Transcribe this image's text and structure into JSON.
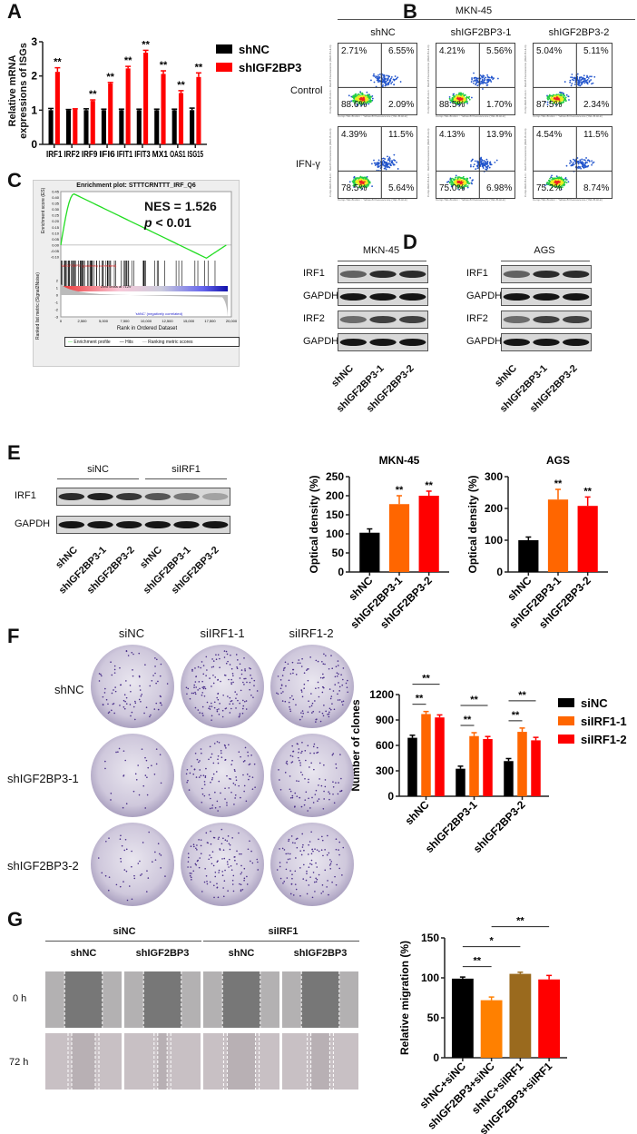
{
  "panels": {
    "A": "A",
    "B": "B",
    "C": "C",
    "D": "D",
    "E": "E",
    "F": "F",
    "G": "G"
  },
  "panelB": {
    "cell_line": "MKN-45",
    "columns": [
      "shNC",
      "shIGF2BP3-1",
      "shIGF2BP3-2"
    ],
    "rows": [
      "Control",
      "IFN-γ"
    ],
    "x_axis_label": "Comp-YEL-B-HLin :: Yellow-B Fluorescence (YEL-B-HLin)",
    "y_axis_label": "Comp-RED-B-HLin :: Red-B Fluorescence (RED-B-HLin)",
    "quadrants": [
      [
        [
          "2.71%",
          "6.55%",
          "88.6%",
          "2.09%"
        ],
        [
          "4.21%",
          "5.56%",
          "88.5%",
          "1.70%"
        ],
        [
          "5.04%",
          "5.11%",
          "87.5%",
          "2.34%"
        ]
      ],
      [
        [
          "4.39%",
          "11.5%",
          "78.5%",
          "5.64%"
        ],
        [
          "4.13%",
          "13.9%",
          "75.0%",
          "6.98%"
        ],
        [
          "4.54%",
          "11.5%",
          "75.2%",
          "8.74%"
        ]
      ]
    ]
  },
  "panelC": {
    "title": "Enrichment plot: STTTCRNTTT_IRF_Q6",
    "nes": "NES = 1.526",
    "p_prefix": "p",
    "p_value": " < 0.01",
    "es_label": "Enrichment score (ES)",
    "es_ticks": [
      "0.45",
      "0.40",
      "0.35",
      "0.30",
      "0.25",
      "0.20",
      "0.15",
      "0.10",
      "0.05",
      "0.00",
      "-0.05",
      "-0.10"
    ],
    "metric_label": "Ranked list metric (Signal2Noise)",
    "metric_ticks": [
      "2",
      "1",
      "0",
      "-1",
      "-2",
      "-3"
    ],
    "pos_label": "'shIGF2BP3' (positively correlated)",
    "neg_label": "'shNC' (negatively correlated)",
    "zero_cross": "Zero cross at 7129",
    "x_ticks": [
      "0",
      "2,500",
      "5,000",
      "7,500",
      "10,000",
      "12,500",
      "15,000",
      "17,500",
      "20,000"
    ],
    "x_label": "Rank in Ordered Dataset",
    "legend": [
      "Enrichment profile",
      "Hits",
      "Ranking metric scores"
    ],
    "colors": {
      "profile": "#22dd22"
    }
  },
  "panelD": {
    "groups": [
      "MKN-45",
      "AGS"
    ],
    "bands": [
      "IRF1",
      "GAPDH",
      "IRF2",
      "GAPDH"
    ],
    "lanes": [
      "shNC",
      "shIGF2BP3-1",
      "shIGF2BP3-2"
    ]
  },
  "panelE": {
    "groups": [
      "siNC",
      "siIRF1"
    ],
    "bands": [
      "IRF1",
      "GAPDH"
    ],
    "lanes": [
      "shNC",
      "shIGF2BP3-1",
      "shIGF2BP3-2",
      "shNC",
      "shIGF2BP3-1",
      "shIGF2BP3-2"
    ]
  },
  "panelF": {
    "columns": [
      "siNC",
      "siIRF1-1",
      "siIRF1-2"
    ],
    "rows": [
      "shNC",
      "shIGF2BP3-1",
      "shIGF2BP3-2"
    ]
  },
  "panelG": {
    "groups": [
      "siNC",
      "siIRF1"
    ],
    "columns": [
      "shNC",
      "shIGF2BP3",
      "shNC",
      "shIGF2BP3"
    ],
    "rows": [
      "0 h",
      "72 h"
    ]
  },
  "chart_data": [
    {
      "id": "A",
      "type": "bar",
      "categories": [
        "IRF1",
        "IRF2",
        "IRF9",
        "IFI6",
        "IFIT1",
        "IFIT3",
        "MX1",
        "OAS1",
        "ISG15"
      ],
      "series": [
        {
          "name": "shNC",
          "color": "#000000",
          "values": [
            1.0,
            1.0,
            1.0,
            1.0,
            1.0,
            1.0,
            1.0,
            1.0,
            1.0
          ],
          "errors": [
            0.05,
            0.02,
            0.04,
            0.03,
            0.03,
            0.03,
            0.03,
            0.03,
            0.06
          ]
        },
        {
          "name": "shIGF2BP3",
          "color": "#ff0000",
          "values": [
            2.12,
            1.02,
            1.27,
            1.78,
            2.22,
            2.68,
            2.06,
            1.5,
            1.97
          ],
          "errors": [
            0.12,
            0.02,
            0.03,
            0.03,
            0.06,
            0.07,
            0.09,
            0.07,
            0.12
          ]
        }
      ],
      "significance": [
        "**",
        "",
        "**",
        "**",
        "**",
        "**",
        "**",
        "**",
        "**"
      ],
      "ylabel": "Relative mRNA expressions of ISGs",
      "ylim": [
        0,
        3
      ],
      "yticks": [
        0,
        1,
        2,
        3
      ],
      "legend": "right"
    },
    {
      "id": "D1",
      "type": "bar",
      "title": "MKN-45",
      "categories": [
        "shNC",
        "shIGF2BP3-1",
        "shIGF2BP3-2"
      ],
      "values": [
        103,
        178,
        200
      ],
      "errors": [
        10,
        22,
        12
      ],
      "colors": [
        "#000000",
        "#ff6600",
        "#ff0000"
      ],
      "significance": [
        "",
        "**",
        "**"
      ],
      "ylabel": "Optical density (%)",
      "ylim": [
        0,
        250
      ],
      "yticks": [
        0,
        50,
        100,
        150,
        200,
        250
      ]
    },
    {
      "id": "D2",
      "type": "bar",
      "title": "AGS",
      "categories": [
        "shNC",
        "shIGF2BP3-1",
        "shIGF2BP3-2"
      ],
      "values": [
        100,
        228,
        208
      ],
      "errors": [
        10,
        32,
        28
      ],
      "colors": [
        "#000000",
        "#ff6600",
        "#ff0000"
      ],
      "significance": [
        "",
        "**",
        "**"
      ],
      "ylabel": "Optical density (%)",
      "ylim": [
        0,
        300
      ],
      "yticks": [
        0,
        100,
        200,
        300
      ]
    },
    {
      "id": "F",
      "type": "bar",
      "categories": [
        "shNC",
        "shIGF2BP3-1",
        "shIGF2BP3-2"
      ],
      "series": [
        {
          "name": "siNC",
          "color": "#000000",
          "values": [
            690,
            325,
            415
          ],
          "errors": [
            30,
            30,
            30
          ]
        },
        {
          "name": "siIRF1-1",
          "color": "#ff6600",
          "values": [
            970,
            710,
            760
          ],
          "errors": [
            30,
            40,
            45
          ]
        },
        {
          "name": "siIRF1-2",
          "color": "#ff0000",
          "values": [
            930,
            675,
            660
          ],
          "errors": [
            30,
            30,
            35
          ]
        }
      ],
      "brackets": [
        {
          "group": 0,
          "from": 0,
          "to": 1,
          "label": "**"
        },
        {
          "group": 0,
          "from": 0,
          "to": 2,
          "label": "**"
        },
        {
          "group": 1,
          "from": 0,
          "to": 1,
          "label": "**"
        },
        {
          "group": 1,
          "from": 0,
          "to": 2,
          "label": "**"
        },
        {
          "group": 2,
          "from": 0,
          "to": 1,
          "label": "**"
        },
        {
          "group": 2,
          "from": 0,
          "to": 2,
          "label": "**"
        }
      ],
      "ylabel": "Number of clones",
      "ylim": [
        0,
        1200
      ],
      "yticks": [
        0,
        300,
        600,
        900,
        1200
      ],
      "legend": "right"
    },
    {
      "id": "G",
      "type": "bar",
      "categories": [
        "shNC+siNC",
        "shIGF2BP3+siNC",
        "shNC+siIRF1",
        "shIGF2BP3+siIRF1"
      ],
      "values": [
        99,
        72,
        105,
        98
      ],
      "errors": [
        2,
        4,
        2,
        5
      ],
      "colors": [
        "#000000",
        "#ff8000",
        "#9a6a1e",
        "#ff0000"
      ],
      "brackets": [
        {
          "from": 0,
          "to": 1,
          "label": "**"
        },
        {
          "from": 0,
          "to": 2,
          "label": "*"
        },
        {
          "from": 1,
          "to": 3,
          "label": "**"
        }
      ],
      "ylabel": "Relative migration (%)",
      "ylim": [
        0,
        150
      ],
      "yticks": [
        0,
        50,
        100,
        150
      ]
    }
  ]
}
